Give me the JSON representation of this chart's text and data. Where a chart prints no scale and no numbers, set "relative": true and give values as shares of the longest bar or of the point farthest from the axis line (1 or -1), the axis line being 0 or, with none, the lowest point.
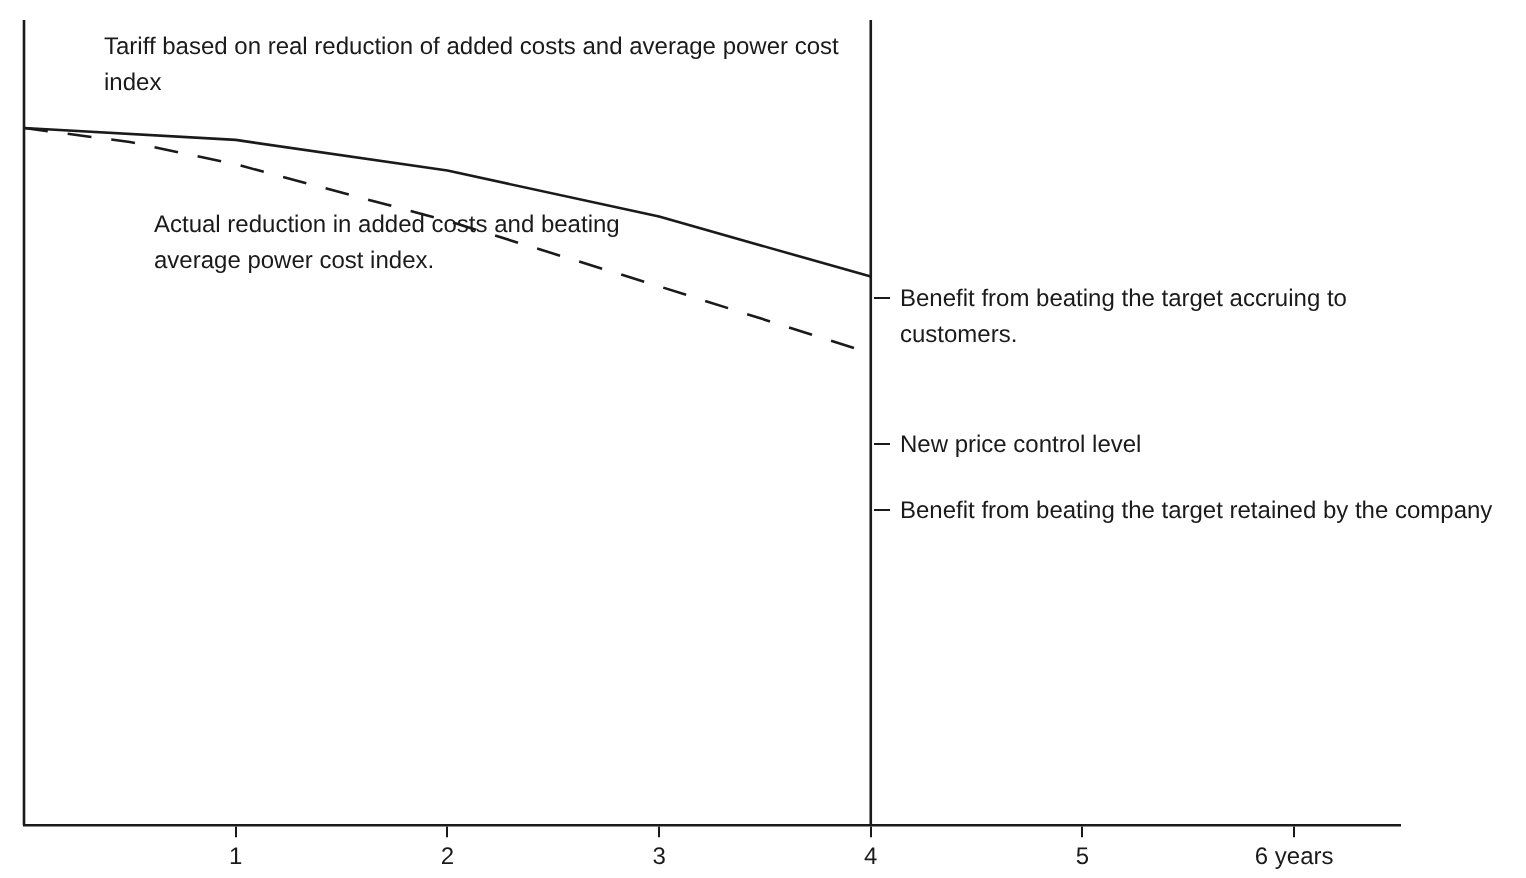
{
  "chart_data": {
    "type": "line",
    "relative": true,
    "xlim": [
      0,
      6.5
    ],
    "xticks": [
      1,
      2,
      3,
      4,
      5,
      {
        "value": 6,
        "label": "6 years"
      }
    ],
    "series": [
      {
        "color": "#1a1a1a",
        "line_style": "solid",
        "x": [
          0,
          1,
          2,
          3,
          4
        ],
        "values": [
          1,
          0.983,
          0.939,
          0.873,
          0.787
        ]
      },
      {
        "color": "#1a1a1a",
        "line_style": "dashed",
        "x": [
          0,
          0.5,
          1,
          2,
          3,
          4
        ],
        "values": [
          1,
          0.98,
          0.948,
          0.867,
          0.773,
          0.677
        ]
      }
    ],
    "ref_lines": [
      {
        "axis": "x",
        "value": 4,
        "color": "#1a1a1a"
      }
    ],
    "annotations": [
      "Tariff based on real reduction of added costs and average power cost index",
      "Actual reduction in added costs and beating average power cost index.",
      "Benefit from beating the target accruing to customers.",
      "New price control level",
      "Benefit from beating the target retained by the company"
    ],
    "grid": false,
    "legend": false,
    "marker": "none"
  }
}
